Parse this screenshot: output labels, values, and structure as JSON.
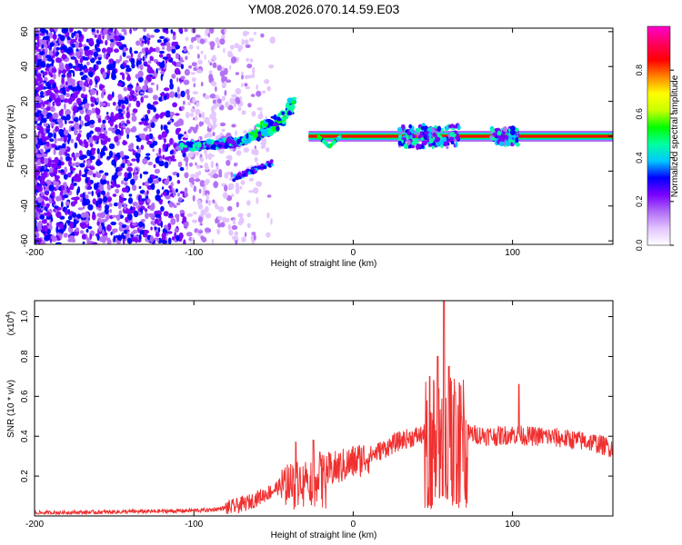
{
  "title": "YM08.2026.070.14.59.E03",
  "chart_data": [
    {
      "type": "heatmap",
      "title": "YM08.2026.070.14.59.E03",
      "xlabel": "Height of straight line (km)",
      "ylabel": "Frequency (Hz)",
      "xlim": [
        -200,
        163
      ],
      "ylim": [
        -62,
        62
      ],
      "xticks": [
        -200,
        -100,
        0,
        100
      ],
      "xtick_labels": [
        "-200",
        "-100",
        "0",
        "100"
      ],
      "yticks": [
        -60,
        -40,
        -20,
        0,
        20,
        40,
        60
      ],
      "ytick_labels": [
        "-60",
        "-40",
        "-20",
        "0",
        "20",
        "40",
        "60"
      ],
      "colorbar": {
        "label": "Normalized spectral amplitude",
        "range": [
          0,
          1
        ],
        "ticks": [
          0.0,
          0.2,
          0.4,
          0.6,
          0.8
        ],
        "tick_labels": [
          "0.0",
          "0.2",
          "0.4",
          "0.6",
          "0.8"
        ],
        "colors": [
          "#ffffff",
          "#e3c4ff",
          "#b06cf5",
          "#7a00ff",
          "#0000ff",
          "#00c8ff",
          "#00ffa0",
          "#00ff00",
          "#c8ff00",
          "#ffff00",
          "#ff8800",
          "#ff0000",
          "#ff0060",
          "#ff00cc"
        ]
      },
      "features": {
        "noise_region_x": [
          -200,
          -60
        ],
        "rising_branch": [
          [
            -110,
            -6
          ],
          [
            -90,
            -5
          ],
          [
            -70,
            -3
          ],
          [
            -55,
            4
          ],
          [
            -45,
            10
          ],
          [
            -37,
            20
          ]
        ],
        "side_branch": [
          [
            -75,
            -24
          ],
          [
            -50,
            -15
          ]
        ],
        "straight_line": {
          "x": [
            -28,
            163
          ],
          "freq": 0
        },
        "dip": [
          [
            -22,
            0
          ],
          [
            -15,
            -6
          ],
          [
            -8,
            0
          ]
        ],
        "bumps": [
          [
            40,
            8
          ],
          [
            55,
            8
          ],
          [
            95,
            6
          ]
        ]
      }
    },
    {
      "type": "line",
      "xlabel": "Height of straight line (km)",
      "ylabel": "SNR (10 * v/v)",
      "yscale_label": "(x10",
      "yscale_exp": "4",
      "yscale_close": ")",
      "xlim": [
        -200,
        163
      ],
      "ylim": [
        0,
        1.08
      ],
      "xticks": [
        -200,
        -100,
        0,
        100
      ],
      "xtick_labels": [
        "-200",
        "-100",
        "0",
        "100"
      ],
      "yticks": [
        0.2,
        0.4,
        0.6,
        0.8,
        1.0
      ],
      "ytick_labels": [
        "0.2",
        "0.4",
        "0.6",
        "0.8",
        "1.0"
      ],
      "color": "#f03030",
      "envelope": {
        "x": [
          -200,
          -150,
          -110,
          -90,
          -75,
          -65,
          -50,
          -40,
          -30,
          -20,
          -10,
          0,
          10,
          20,
          30,
          40,
          50,
          58,
          65,
          75,
          90,
          100,
          110,
          120,
          130,
          140,
          150,
          163
        ],
        "y": [
          0.015,
          0.02,
          0.025,
          0.03,
          0.045,
          0.07,
          0.13,
          0.18,
          0.2,
          0.22,
          0.24,
          0.27,
          0.3,
          0.34,
          0.38,
          0.4,
          0.42,
          0.42,
          0.42,
          0.41,
          0.4,
          0.41,
          0.4,
          0.4,
          0.39,
          0.38,
          0.37,
          0.34
        ]
      },
      "peaks": [
        [
          -36,
          0.37
        ],
        [
          -25,
          0.38
        ],
        [
          -21,
          0.32
        ],
        [
          48,
          0.7
        ],
        [
          53,
          0.8
        ],
        [
          57,
          1.08
        ],
        [
          60,
          0.75
        ],
        [
          64,
          0.62
        ],
        [
          68,
          0.5
        ],
        [
          104,
          0.66
        ]
      ]
    }
  ]
}
